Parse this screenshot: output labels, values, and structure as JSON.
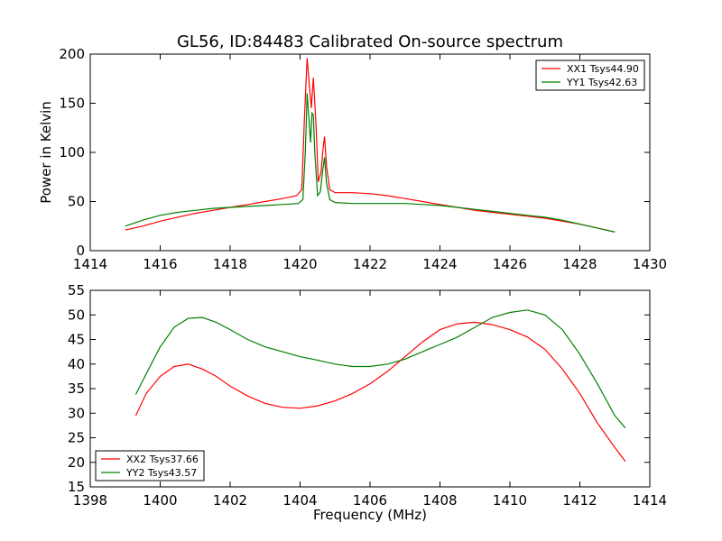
{
  "chart_data": [
    {
      "type": "line",
      "title": "GL56, ID:84483 Calibrated On-source spectrum",
      "xlabel": "",
      "ylabel": "Power in Kelvin",
      "xlim": [
        1414,
        1430
      ],
      "ylim": [
        0,
        200
      ],
      "xticks": [
        1414,
        1416,
        1418,
        1420,
        1422,
        1424,
        1426,
        1428,
        1430
      ],
      "yticks": [
        0,
        50,
        100,
        150,
        200
      ],
      "legend_position": "top-right",
      "grid": false,
      "series": [
        {
          "name": "XX1 Tsys44.90",
          "color": "#ff0000",
          "x": [
            1415.0,
            1415.5,
            1416.0,
            1416.5,
            1417.0,
            1417.5,
            1418.0,
            1418.5,
            1419.0,
            1419.5,
            1419.9,
            1420.05,
            1420.12,
            1420.2,
            1420.26,
            1420.32,
            1420.38,
            1420.42,
            1420.46,
            1420.52,
            1420.6,
            1420.66,
            1420.7,
            1420.76,
            1420.85,
            1421.0,
            1421.5,
            1422.0,
            1422.5,
            1423.0,
            1423.5,
            1424.0,
            1424.5,
            1425.0,
            1425.5,
            1426.0,
            1426.5,
            1427.0,
            1427.5,
            1428.0,
            1428.5,
            1429.0
          ],
          "y": [
            21,
            25,
            30,
            34,
            38,
            41,
            44,
            47,
            50,
            53,
            56,
            62,
            130,
            196,
            170,
            145,
            176,
            150,
            125,
            70,
            80,
            105,
            116,
            85,
            62,
            59,
            59,
            58,
            56,
            53,
            50,
            47,
            44,
            41,
            39,
            37,
            35,
            33,
            30,
            27,
            23,
            19
          ]
        },
        {
          "name": "YY1 Tsys42.63",
          "color": "#008000",
          "x": [
            1415.0,
            1415.5,
            1416.0,
            1416.5,
            1417.0,
            1417.5,
            1418.0,
            1418.5,
            1419.0,
            1419.5,
            1419.95,
            1420.08,
            1420.15,
            1420.2,
            1420.26,
            1420.3,
            1420.34,
            1420.38,
            1420.42,
            1420.5,
            1420.58,
            1420.64,
            1420.7,
            1420.75,
            1420.85,
            1421.0,
            1421.5,
            1422.0,
            1422.5,
            1423.0,
            1423.5,
            1424.0,
            1424.5,
            1425.0,
            1425.5,
            1426.0,
            1426.5,
            1427.0,
            1427.5,
            1428.0,
            1428.5,
            1429.0
          ],
          "y": [
            25,
            31,
            36,
            39,
            41,
            43,
            44,
            45,
            46,
            47,
            48,
            52,
            100,
            160,
            130,
            110,
            140,
            138,
            100,
            56,
            60,
            80,
            95,
            70,
            52,
            49,
            48,
            48,
            48,
            48,
            47,
            46,
            44,
            42,
            40,
            38,
            36,
            34,
            31,
            27,
            23,
            19
          ]
        }
      ]
    },
    {
      "type": "line",
      "title": "",
      "xlabel": "Frequency (MHz)",
      "ylabel": "",
      "xlim": [
        1398,
        1414
      ],
      "ylim": [
        15,
        55
      ],
      "xticks": [
        1398,
        1400,
        1402,
        1404,
        1406,
        1408,
        1410,
        1412,
        1414
      ],
      "yticks": [
        15,
        20,
        25,
        30,
        35,
        40,
        45,
        50,
        55
      ],
      "legend_position": "bottom-left",
      "grid": false,
      "series": [
        {
          "name": "XX2 Tsys37.66",
          "color": "#ff0000",
          "x": [
            1399.3,
            1399.6,
            1400.0,
            1400.4,
            1400.8,
            1401.2,
            1401.6,
            1402.0,
            1402.5,
            1403.0,
            1403.5,
            1404.0,
            1404.5,
            1405.0,
            1405.5,
            1406.0,
            1406.5,
            1407.0,
            1407.5,
            1408.0,
            1408.5,
            1409.0,
            1409.5,
            1410.0,
            1410.5,
            1411.0,
            1411.5,
            1412.0,
            1412.5,
            1413.0,
            1413.3
          ],
          "y": [
            29.5,
            34,
            37.5,
            39.5,
            40,
            39,
            37.5,
            35.5,
            33.5,
            32,
            31.2,
            31,
            31.5,
            32.5,
            34,
            36,
            38.5,
            41.5,
            44.5,
            47,
            48.2,
            48.5,
            48,
            47,
            45.5,
            43,
            39,
            34,
            28,
            23,
            20.2
          ]
        },
        {
          "name": "YY2 Tsys43.57",
          "color": "#008000",
          "x": [
            1399.3,
            1399.6,
            1400.0,
            1400.4,
            1400.8,
            1401.2,
            1401.6,
            1402.0,
            1402.5,
            1403.0,
            1403.5,
            1404.0,
            1404.5,
            1405.0,
            1405.5,
            1406.0,
            1406.5,
            1407.0,
            1407.5,
            1408.0,
            1408.5,
            1409.0,
            1409.5,
            1410.0,
            1410.5,
            1411.0,
            1411.5,
            1412.0,
            1412.5,
            1413.0,
            1413.3
          ],
          "y": [
            33.8,
            38,
            43.5,
            47.5,
            49.3,
            49.5,
            48.5,
            47,
            45,
            43.5,
            42.5,
            41.5,
            40.8,
            40,
            39.5,
            39.5,
            40,
            41,
            42.5,
            44,
            45.5,
            47.5,
            49.5,
            50.5,
            51,
            50,
            47,
            42,
            36,
            29.5,
            27
          ]
        }
      ]
    }
  ]
}
